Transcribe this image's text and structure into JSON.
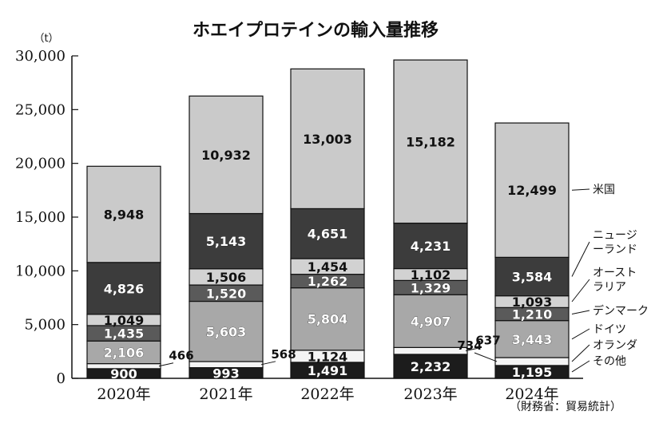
{
  "chart_data": {
    "type": "bar",
    "stacked": true,
    "title": "ホエイプロテインの輸入量推移",
    "unit_label": "（t）",
    "source": "（財務省：貿易統計）",
    "categories": [
      "2020年",
      "2021年",
      "2022年",
      "2023年",
      "2024年"
    ],
    "ylim": [
      0,
      30000
    ],
    "yticks": [
      0,
      5000,
      10000,
      15000,
      20000,
      25000,
      30000
    ],
    "ytick_labels": [
      "0",
      "5,000",
      "10,000",
      "15,000",
      "20,000",
      "25,000",
      "30,000"
    ],
    "legend_position": "right",
    "series": [
      {
        "name": "その他",
        "color": "#1c1c1c",
        "text_color": "#ffffff",
        "values": [
          900,
          993,
          1491,
          2232,
          1195
        ],
        "labels": [
          "900",
          "993",
          "1,491",
          "2,232",
          "1,195"
        ]
      },
      {
        "name": "オランダ",
        "color": "#f4f4f4",
        "text_color": "#111111",
        "values": [
          466,
          568,
          1124,
          637,
          734
        ],
        "labels": [
          "466",
          "568",
          "1,124",
          "637",
          "734"
        ]
      },
      {
        "name": "ドイツ",
        "color": "#a8a8a8",
        "text_color": "#ffffff",
        "values": [
          2106,
          5603,
          5804,
          4907,
          3443
        ],
        "labels": [
          "2,106",
          "5,603",
          "5,804",
          "4,907",
          "3,443"
        ]
      },
      {
        "name": "デンマーク",
        "color": "#5a5a5a",
        "text_color": "#ffffff",
        "values": [
          1435,
          1520,
          1262,
          1329,
          1210
        ],
        "labels": [
          "1,435",
          "1,520",
          "1,262",
          "1,329",
          "1,210"
        ]
      },
      {
        "name": "オーストラリア",
        "legend_lines": [
          "オースト",
          "ラリア"
        ],
        "color": "#d2d2d2",
        "text_color": "#111111",
        "values": [
          1049,
          1506,
          1454,
          1102,
          1093
        ],
        "labels": [
          "1,049",
          "1,506",
          "1,454",
          "1,102",
          "1,093"
        ]
      },
      {
        "name": "ニュージーランド",
        "legend_lines": [
          "ニュージ",
          "ーランド"
        ],
        "color": "#3c3c3c",
        "text_color": "#ffffff",
        "values": [
          4826,
          5143,
          4651,
          4231,
          3584
        ],
        "labels": [
          "4,826",
          "5,143",
          "4,651",
          "4,231",
          "3,584"
        ]
      },
      {
        "name": "米国",
        "legend_lines": [
          "米国"
        ],
        "color": "#cacaca",
        "text_color": "#111111",
        "values": [
          8948,
          10932,
          13003,
          15182,
          12499
        ],
        "labels": [
          "8,948",
          "10,932",
          "13,003",
          "15,182",
          "12,499"
        ]
      }
    ]
  }
}
